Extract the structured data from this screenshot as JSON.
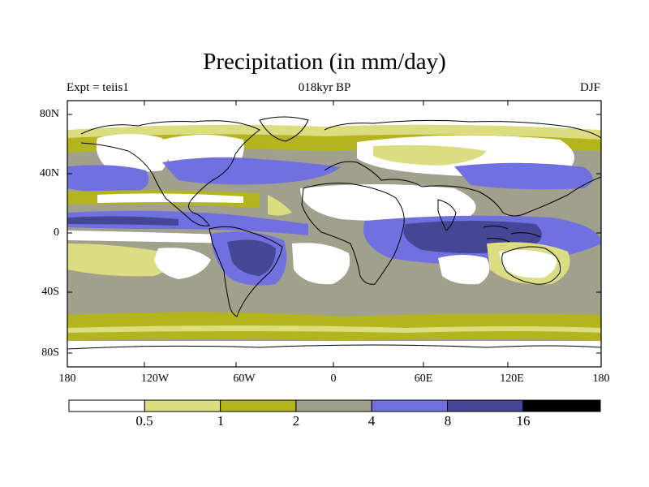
{
  "title": "Precipitation (in mm/day)",
  "subtitle_left": "Expt = teiis1",
  "subtitle_center": "018kyr BP",
  "subtitle_right": "DJF",
  "map": {
    "lon_range": [
      -180,
      180
    ],
    "lat_range": [
      -90,
      90
    ],
    "x_ticks": [
      "180",
      "120W",
      "60W",
      "0",
      "60E",
      "120E",
      "180"
    ],
    "y_ticks": [
      "80N",
      "40N",
      "0",
      "40S",
      "80S"
    ]
  },
  "colorbar": {
    "levels": [
      "0.5",
      "1",
      "2",
      "4",
      "8",
      "16"
    ],
    "colors": [
      "#ffffff",
      "#dcdc80",
      "#b4b41e",
      "#a0a08c",
      "#7070e0",
      "#464696",
      "#000000"
    ]
  }
}
